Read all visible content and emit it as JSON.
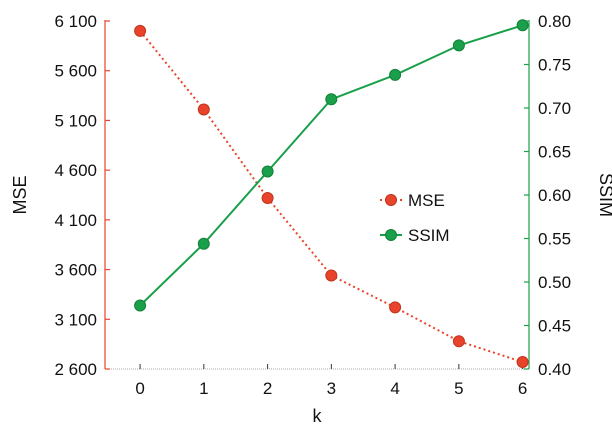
{
  "chart_data": {
    "type": "line",
    "title": "",
    "xlabel": "k",
    "ylabel": "MSE",
    "y2label": "SSIM",
    "x": [
      0,
      1,
      2,
      3,
      4,
      5,
      6
    ],
    "xlim": [
      -0.55,
      6.1
    ],
    "ylim": [
      2600,
      6100
    ],
    "y2lim": [
      0.4,
      0.8
    ],
    "yticks": [
      2600,
      3100,
      3600,
      4100,
      4600,
      5100,
      5600,
      6100
    ],
    "ytick_labels": [
      "2 600",
      "3 100",
      "3 600",
      "4 100",
      "4 600",
      "5 100",
      "5 600",
      "6 100"
    ],
    "y2ticks": [
      0.4,
      0.45,
      0.5,
      0.55,
      0.6,
      0.65,
      0.7,
      0.75,
      0.8
    ],
    "y2tick_labels": [
      "0.40",
      "0.45",
      "0.50",
      "0.55",
      "0.60",
      "0.65",
      "0.70",
      "0.75",
      "0.80"
    ],
    "grid": false,
    "legend_position": "center-right",
    "series": [
      {
        "name": "MSE",
        "axis": "left",
        "color": "#e8442b",
        "line_style": "dotted",
        "values": [
          6000,
          5210,
          4320,
          3540,
          3220,
          2880,
          2670
        ]
      },
      {
        "name": "SSIM",
        "axis": "right",
        "color": "#1aa04a",
        "line_style": "solid",
        "values": [
          0.473,
          0.544,
          0.627,
          0.71,
          0.738,
          0.772,
          0.795
        ]
      }
    ],
    "colors": {
      "left_axis": "#e8442b",
      "right_axis": "#1aa04a",
      "bottom_axis": "#aaaaaa"
    }
  }
}
